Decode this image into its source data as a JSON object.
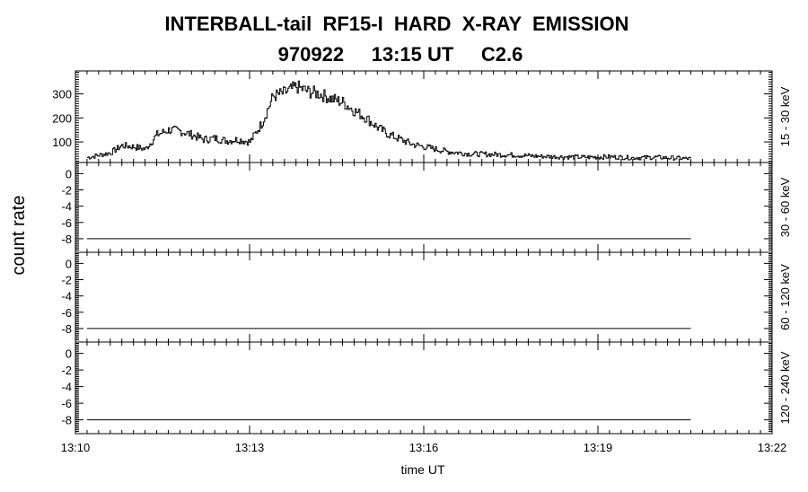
{
  "chart_data": {
    "type": "line",
    "title": "INTERBALL-tail  RF15-I  HARD  X-RAY  EMISSION",
    "subtitle": "970922     13:15 UT     C2.6",
    "xlabel": "time UT",
    "ylabel": "count rate",
    "x_ticks": [
      "13:10",
      "13:13",
      "13:16",
      "13:19",
      "13:22"
    ],
    "xlim_minutes": [
      0,
      12
    ],
    "panels": [
      {
        "name": "15 - 30 keV",
        "ylim": [
          20,
          390
        ],
        "y_ticks": [
          100,
          200,
          300
        ],
        "series": {
          "t_minutes": [
            0.2,
            0.4,
            0.6,
            0.8,
            1.0,
            1.2,
            1.4,
            1.6,
            1.8,
            2.0,
            2.2,
            2.4,
            2.6,
            2.8,
            3.0,
            3.2,
            3.4,
            3.6,
            3.8,
            4.0,
            4.2,
            4.4,
            4.6,
            4.8,
            5.0,
            5.2,
            5.4,
            5.6,
            5.8,
            6.0,
            6.4,
            6.8,
            7.2,
            7.6,
            8.0,
            8.4,
            8.8,
            9.2,
            9.6,
            10.0,
            10.4,
            10.6
          ],
          "values": [
            35,
            45,
            55,
            85,
            80,
            70,
            130,
            150,
            145,
            130,
            110,
            115,
            105,
            110,
            100,
            175,
            290,
            305,
            330,
            310,
            300,
            280,
            265,
            230,
            200,
            160,
            130,
            110,
            90,
            80,
            60,
            50,
            48,
            45,
            40,
            38,
            36,
            38,
            34,
            36,
            32,
            30
          ]
        }
      },
      {
        "name": "30 - 60 keV",
        "ylim": [
          -9.5,
          1.2
        ],
        "y_ticks": [
          0,
          -2,
          -4,
          -6,
          -8
        ],
        "series": {
          "t_minutes": [
            0.2,
            10.6
          ],
          "values": [
            -8,
            -8
          ]
        }
      },
      {
        "name": "60 - 120 keV",
        "ylim": [
          -9.5,
          1.2
        ],
        "y_ticks": [
          0,
          -2,
          -4,
          -6,
          -8
        ],
        "series": {
          "t_minutes": [
            0.2,
            10.6
          ],
          "values": [
            -8,
            -8
          ]
        }
      },
      {
        "name": "120 - 240 keV",
        "ylim": [
          -9.5,
          1.2
        ],
        "y_ticks": [
          0,
          -2,
          -4,
          -6,
          -8
        ],
        "series": {
          "t_minutes": [
            0.2,
            10.6
          ],
          "values": [
            -8,
            -8
          ]
        }
      }
    ]
  }
}
